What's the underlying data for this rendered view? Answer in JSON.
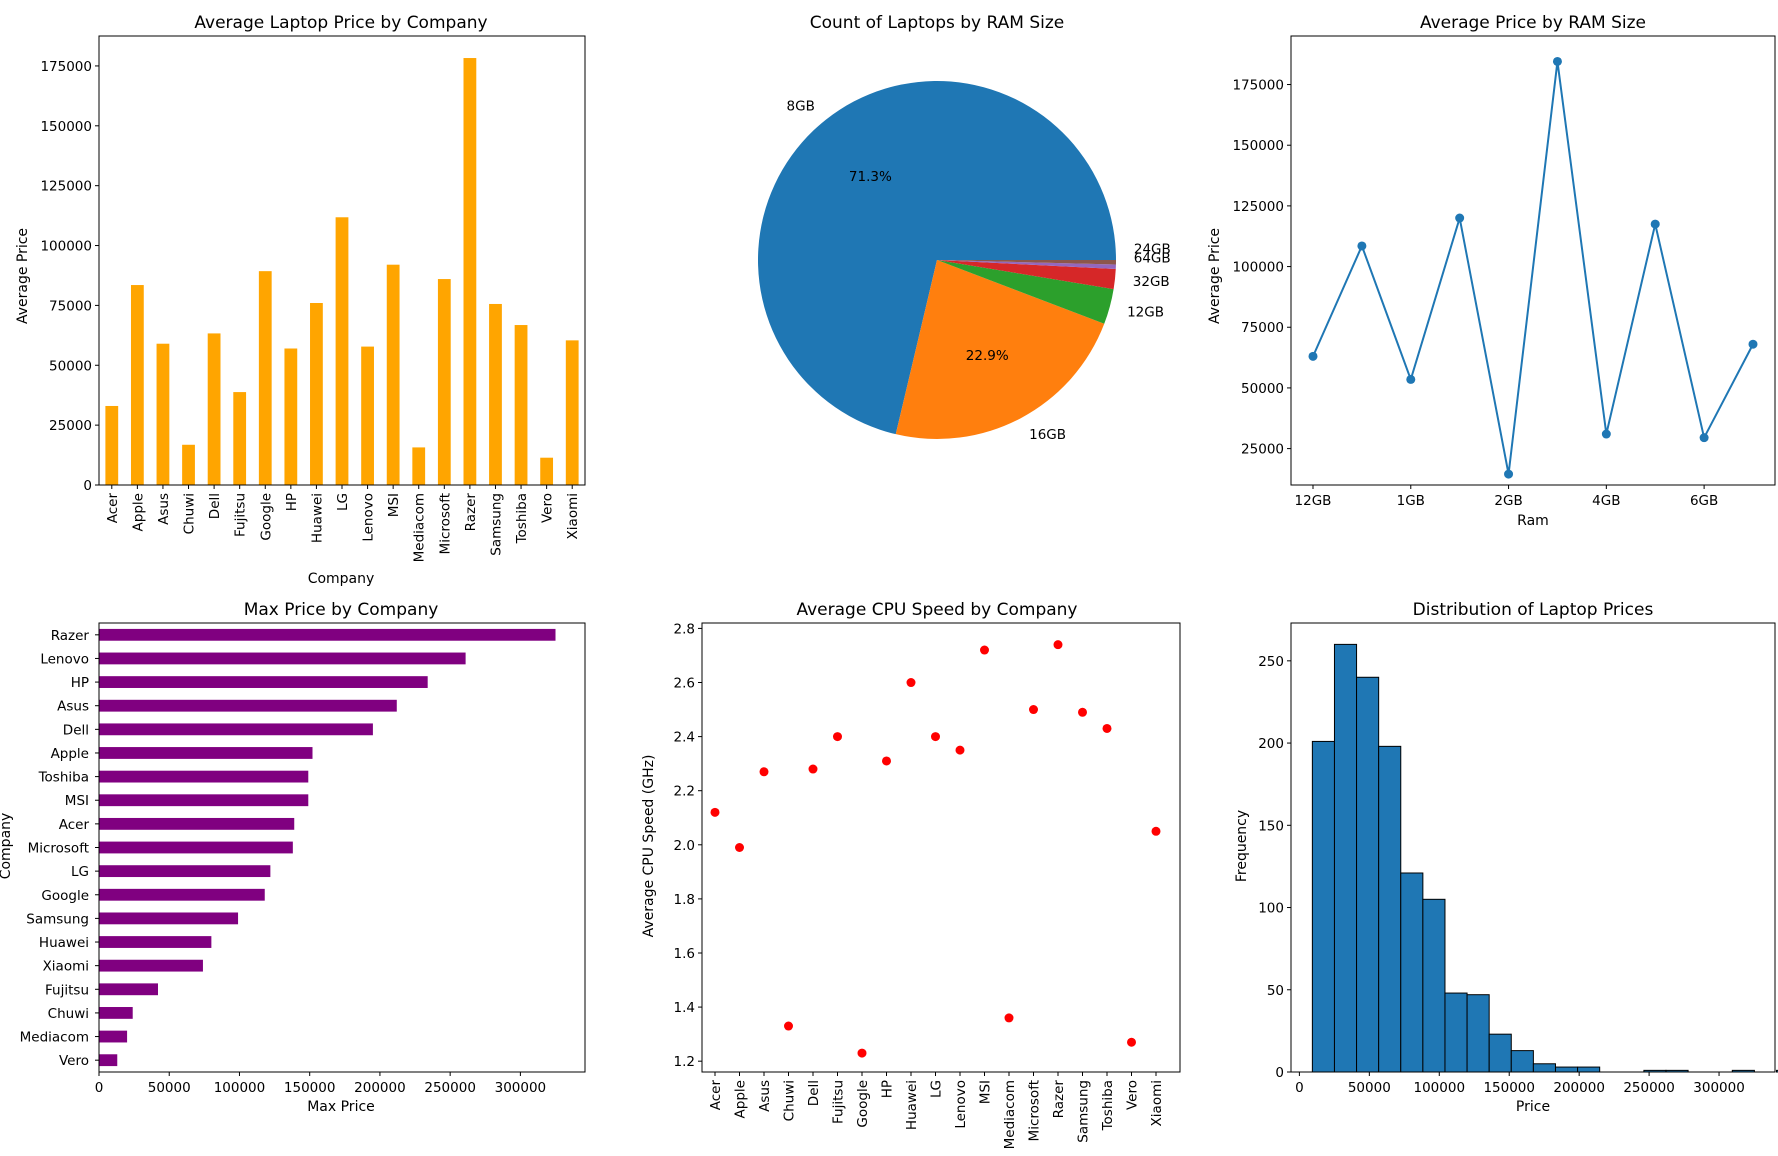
{
  "chart_data": [
    {
      "type": "bar",
      "title": "Average Laptop Price by Company",
      "xlabel": "Company",
      "ylabel": "Average Price",
      "ylim": [
        0,
        187500
      ],
      "yticks": [
        0,
        25000,
        50000,
        75000,
        100000,
        125000,
        150000,
        175000
      ],
      "color": "#ffa500",
      "categories": [
        "Acer",
        "Apple",
        "Asus",
        "Chuwi",
        "Dell",
        "Fujitsu",
        "Google",
        "HP",
        "Huawei",
        "LG",
        "Lenovo",
        "MSI",
        "Mediacom",
        "Microsoft",
        "Razer",
        "Samsung",
        "Toshiba",
        "Vero",
        "Xiaomi"
      ],
      "values": [
        33000,
        83500,
        59000,
        16800,
        63300,
        38800,
        89300,
        57000,
        76000,
        111800,
        57800,
        92000,
        15700,
        86000,
        178300,
        75600,
        66800,
        11400,
        60400
      ]
    },
    {
      "type": "pie",
      "title": "Count of Laptops by RAM Size",
      "labels": [
        "8GB",
        "16GB",
        "12GB",
        "32GB",
        "64GB",
        "24GB"
      ],
      "values": [
        71.3,
        22.9,
        3.2,
        1.8,
        0.4,
        0.4
      ],
      "pct_labels": [
        "71.3%",
        "22.9%",
        "",
        "",
        "",
        ""
      ],
      "colors": [
        "#1f77b4",
        "#ff7f0e",
        "#2ca02c",
        "#d62728",
        "#9467bd",
        "#8c564b"
      ]
    },
    {
      "type": "line",
      "title": "Average Price by RAM Size",
      "xlabel": "Ram",
      "ylabel": "Average Price",
      "ylim": [
        10000,
        195000
      ],
      "yticks": [
        25000,
        50000,
        75000,
        100000,
        125000,
        150000,
        175000
      ],
      "xticklabels": [
        "12GB",
        "",
        "1GB",
        "",
        "2GB",
        "",
        "4GB",
        "",
        "6GB",
        ""
      ],
      "color": "#1f77b4",
      "values": [
        63000,
        108500,
        53500,
        120000,
        14500,
        184500,
        31000,
        117500,
        29500,
        68000
      ]
    },
    {
      "type": "bar",
      "orientation": "horizontal",
      "title": "Max Price by Company",
      "xlabel": "Max Price",
      "ylabel": "Company",
      "xlim": [
        0,
        346000
      ],
      "xticks": [
        0,
        50000,
        100000,
        150000,
        200000,
        250000,
        300000
      ],
      "color": "#800080",
      "categories": [
        "Razer",
        "Lenovo",
        "HP",
        "Asus",
        "Dell",
        "Apple",
        "Toshiba",
        "MSI",
        "Acer",
        "Microsoft",
        "LG",
        "Google",
        "Samsung",
        "Huawei",
        "Xiaomi",
        "Fujitsu",
        "Chuwi",
        "Mediacom",
        "Vero"
      ],
      "values": [
        325000,
        261000,
        234000,
        212000,
        195000,
        152000,
        149000,
        149000,
        139000,
        138000,
        122000,
        118000,
        99000,
        80000,
        74000,
        42000,
        24000,
        20000,
        13000
      ]
    },
    {
      "type": "scatter",
      "title": "Average CPU Speed by Company",
      "ylabel": "Average CPU Speed (GHz)",
      "ylim": [
        1.16,
        2.82
      ],
      "yticks": [
        1.2,
        1.4,
        1.6,
        1.8,
        2.0,
        2.2,
        2.4,
        2.6,
        2.8
      ],
      "color": "#ff0000",
      "categories": [
        "Acer",
        "Apple",
        "Asus",
        "Chuwi",
        "Dell",
        "Fujitsu",
        "Google",
        "HP",
        "Huawei",
        "LG",
        "Lenovo",
        "MSI",
        "Mediacom",
        "Microsoft",
        "Razer",
        "Samsung",
        "Toshiba",
        "Vero",
        "Xiaomi"
      ],
      "values": [
        2.12,
        1.99,
        2.27,
        1.33,
        2.28,
        2.4,
        1.23,
        2.31,
        2.6,
        2.4,
        2.35,
        2.72,
        1.36,
        2.5,
        2.74,
        2.49,
        2.43,
        1.27,
        2.05
      ]
    },
    {
      "type": "histogram",
      "title": "Distribution of Laptop Prices",
      "xlabel": "Price",
      "ylabel": "Frequency",
      "xlim": [
        -6000,
        340000
      ],
      "ylim": [
        0,
        273
      ],
      "xticks": [
        0,
        50000,
        100000,
        150000,
        200000,
        250000,
        300000
      ],
      "yticks": [
        0,
        50,
        100,
        150,
        200,
        250
      ],
      "color": "#1f77b4",
      "bin_start": 9270,
      "bin_width": 15800,
      "counts": [
        201,
        260,
        240,
        198,
        121,
        105,
        48,
        47,
        23,
        13,
        5,
        3,
        3,
        0,
        0,
        1,
        1,
        0,
        0,
        1,
        0,
        1
      ]
    }
  ]
}
